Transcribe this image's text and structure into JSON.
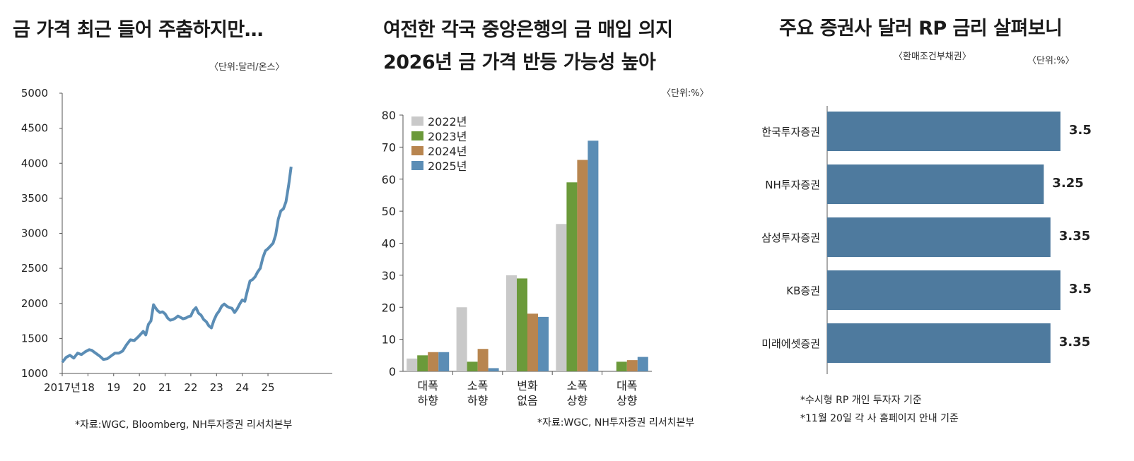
{
  "panel1": {
    "title": "금 가격 최근 들어 주춤하지만…",
    "unit": "〈단위:달러/온스〉",
    "source": "*자료:WGC, Bloomberg, NH투자증권 리서치본부"
  },
  "panel2": {
    "title_line1": "여전한 각국 중앙은행의 금 매입 의지",
    "title_line2": "2026년 금 가격 반등 가능성 높아",
    "unit": "〈단위:%〉",
    "source": "*자료:WGC, NH투자증권 리서치본부"
  },
  "panel3": {
    "title": "주요 증권사 달러 RP 금리 살펴보니",
    "subtitle": "〈환매조건부채권〉",
    "unit": "〈단위:%〉",
    "note1": "*수시형 RP 개인 투자자 기준",
    "note2": "*11월 20일 각 사 홈페이지 안내 기준"
  },
  "chart_data": [
    {
      "type": "line",
      "title": "금 가격 최근 들어 주춤하지만…",
      "ylabel": "달러/온스",
      "ylim": [
        1000,
        5000
      ],
      "yticks": [
        "1000",
        "1500",
        "2000",
        "2500",
        "3000",
        "3500",
        "4000",
        "4500",
        "5000"
      ],
      "xlim": [
        2017,
        2027.5
      ],
      "xticks": [
        {
          "x": 2017,
          "label": "2017년"
        },
        {
          "x": 2018,
          "label": "18"
        },
        {
          "x": 2019,
          "label": "19"
        },
        {
          "x": 2020,
          "label": "20"
        },
        {
          "x": 2021,
          "label": "21"
        },
        {
          "x": 2022,
          "label": "22"
        },
        {
          "x": 2023,
          "label": "23"
        },
        {
          "x": 2024,
          "label": "24"
        },
        {
          "x": 2025,
          "label": "25"
        }
      ],
      "color": "#5b8db5",
      "series": [
        {
          "name": "금 가격",
          "x": [
            2017.0,
            2017.15,
            2017.3,
            2017.45,
            2017.6,
            2017.75,
            2017.9,
            2018.05,
            2018.15,
            2018.3,
            2018.45,
            2018.6,
            2018.75,
            2018.9,
            2019.05,
            2019.2,
            2019.35,
            2019.5,
            2019.65,
            2019.8,
            2019.95,
            2020.05,
            2020.15,
            2020.25,
            2020.35,
            2020.45,
            2020.55,
            2020.6,
            2020.7,
            2020.8,
            2020.9,
            2021.0,
            2021.1,
            2021.2,
            2021.3,
            2021.4,
            2021.5,
            2021.6,
            2021.7,
            2021.8,
            2021.9,
            2022.0,
            2022.1,
            2022.2,
            2022.3,
            2022.4,
            2022.5,
            2022.6,
            2022.7,
            2022.8,
            2022.9,
            2023.0,
            2023.1,
            2023.2,
            2023.3,
            2023.4,
            2023.5,
            2023.6,
            2023.7,
            2023.8,
            2023.9,
            2024.0,
            2024.1,
            2024.2,
            2024.3,
            2024.4,
            2024.5,
            2024.6,
            2024.7,
            2024.8,
            2024.9,
            2025.0,
            2025.1,
            2025.2,
            2025.3,
            2025.4,
            2025.5,
            2025.6,
            2025.7,
            2025.8,
            2025.9
          ],
          "y": [
            1160,
            1230,
            1260,
            1220,
            1290,
            1270,
            1310,
            1340,
            1330,
            1290,
            1250,
            1200,
            1210,
            1250,
            1290,
            1290,
            1320,
            1410,
            1480,
            1470,
            1520,
            1560,
            1600,
            1550,
            1700,
            1750,
            1980,
            1950,
            1900,
            1870,
            1880,
            1850,
            1790,
            1760,
            1770,
            1790,
            1820,
            1800,
            1780,
            1790,
            1810,
            1820,
            1900,
            1940,
            1860,
            1830,
            1770,
            1740,
            1680,
            1650,
            1760,
            1840,
            1890,
            1960,
            1990,
            1960,
            1940,
            1930,
            1870,
            1920,
            1990,
            2050,
            2030,
            2180,
            2320,
            2340,
            2380,
            2450,
            2500,
            2650,
            2750,
            2780,
            2820,
            2860,
            2980,
            3200,
            3320,
            3350,
            3450,
            3680,
            3950
          ]
        }
      ]
    },
    {
      "type": "bar",
      "title": "여전한 각국 중앙은행의 금 매입 의지 2026년 금 가격 반등 가능성 높아",
      "ylabel": "%",
      "ylim": [
        0,
        80
      ],
      "yticks": [
        "0",
        "10",
        "20",
        "30",
        "40",
        "50",
        "60",
        "70",
        "80"
      ],
      "categories": [
        [
          "대폭",
          "하향"
        ],
        [
          "소폭",
          "하향"
        ],
        [
          "변화",
          "없음"
        ],
        [
          "소폭",
          "상향"
        ],
        [
          "대폭",
          "상향"
        ]
      ],
      "series": [
        {
          "name": "2022년",
          "color": "#c9c9c9",
          "values": [
            4,
            20,
            30,
            46,
            0
          ]
        },
        {
          "name": "2023년",
          "color": "#6b9a3a",
          "values": [
            5,
            3,
            29,
            59,
            3
          ]
        },
        {
          "name": "2024년",
          "color": "#b8854f",
          "values": [
            6,
            7,
            18,
            66,
            3.5
          ]
        },
        {
          "name": "2025년",
          "color": "#5b8db5",
          "values": [
            6,
            1,
            17,
            72,
            4.5
          ]
        }
      ]
    },
    {
      "type": "bar",
      "orientation": "horizontal",
      "title": "주요 증권사 달러 RP 금리 살펴보니",
      "ylabel": "%",
      "xlim": [
        0,
        3.5
      ],
      "color": "#4e7a9e",
      "categories": [
        "한국투자증권",
        "NH투자증권",
        "삼성투자증권",
        "KB증권",
        "미래에셋증권"
      ],
      "values": [
        3.5,
        3.25,
        3.35,
        3.5,
        3.35
      ],
      "labels": [
        "3.5",
        "3.25",
        "3.35",
        "3.5",
        "3.35"
      ]
    }
  ]
}
